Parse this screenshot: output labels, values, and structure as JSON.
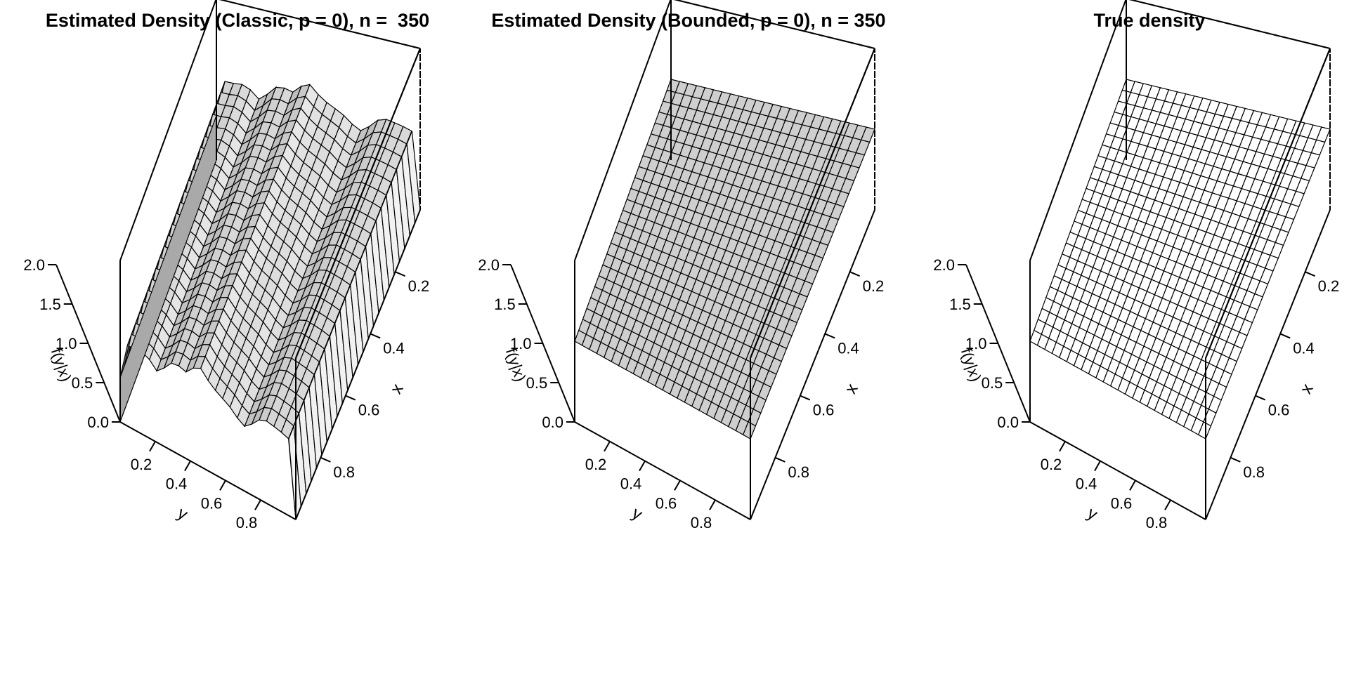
{
  "chart_data": [
    {
      "type": "surface",
      "title": "Estimated Density (Classic, p = 0), n =  350",
      "xlabel": "y",
      "ylabel": "x",
      "zlabel": "f(y|x)",
      "y_ticks": [
        "0.2",
        "0.4",
        "0.6",
        "0.8"
      ],
      "x_ticks": [
        "0.2",
        "0.4",
        "0.6",
        "0.8"
      ],
      "z_ticks": [
        "0.0",
        "0.5",
        "1.0",
        "1.5",
        "2.0"
      ],
      "zlim": [
        0,
        2
      ],
      "grid": [
        25,
        25
      ],
      "surface_color": "#d3d3d3",
      "density_profile_over_y": {
        "y": [
          0.0,
          0.04,
          0.08,
          0.12,
          0.17,
          0.21,
          0.25,
          0.29,
          0.33,
          0.38,
          0.42,
          0.46,
          0.5,
          0.54,
          0.58,
          0.62,
          0.67,
          0.71,
          0.75,
          0.79,
          0.83,
          0.88,
          0.92,
          0.96,
          1.0
        ],
        "f": [
          0.55,
          1.0,
          1.0,
          1.02,
          0.97,
          0.88,
          0.97,
          1.08,
          1.1,
          1.07,
          1.18,
          1.22,
          1.12,
          1.05,
          1.0,
          0.95,
          0.85,
          0.8,
          0.88,
          0.98,
          1.02,
          1.0,
          0.98,
          0.95,
          0.0
        ]
      }
    },
    {
      "type": "surface",
      "title": "Estimated Density (Bounded, p = 0), n = 350",
      "xlabel": "y",
      "ylabel": "x",
      "zlabel": "f(y|x)",
      "y_ticks": [
        "0.2",
        "0.4",
        "0.6",
        "0.8"
      ],
      "x_ticks": [
        "0.2",
        "0.4",
        "0.6",
        "0.8"
      ],
      "z_ticks": [
        "0.0",
        "0.5",
        "1.0",
        "1.5",
        "2.0"
      ],
      "zlim": [
        0,
        2
      ],
      "grid": [
        25,
        25
      ],
      "surface_color": "#cfcfcf",
      "constant_value": 1.0
    },
    {
      "type": "surface",
      "title": "True density",
      "xlabel": "y",
      "ylabel": "x",
      "zlabel": "f(y|x)",
      "y_ticks": [
        "0.2",
        "0.4",
        "0.6",
        "0.8"
      ],
      "x_ticks": [
        "0.2",
        "0.4",
        "0.6",
        "0.8"
      ],
      "z_ticks": [
        "0.0",
        "0.5",
        "1.0",
        "1.5",
        "2.0"
      ],
      "zlim": [
        0,
        2
      ],
      "grid": [
        25,
        25
      ],
      "surface_color": "#ffffff",
      "constant_value": 1.0
    }
  ]
}
